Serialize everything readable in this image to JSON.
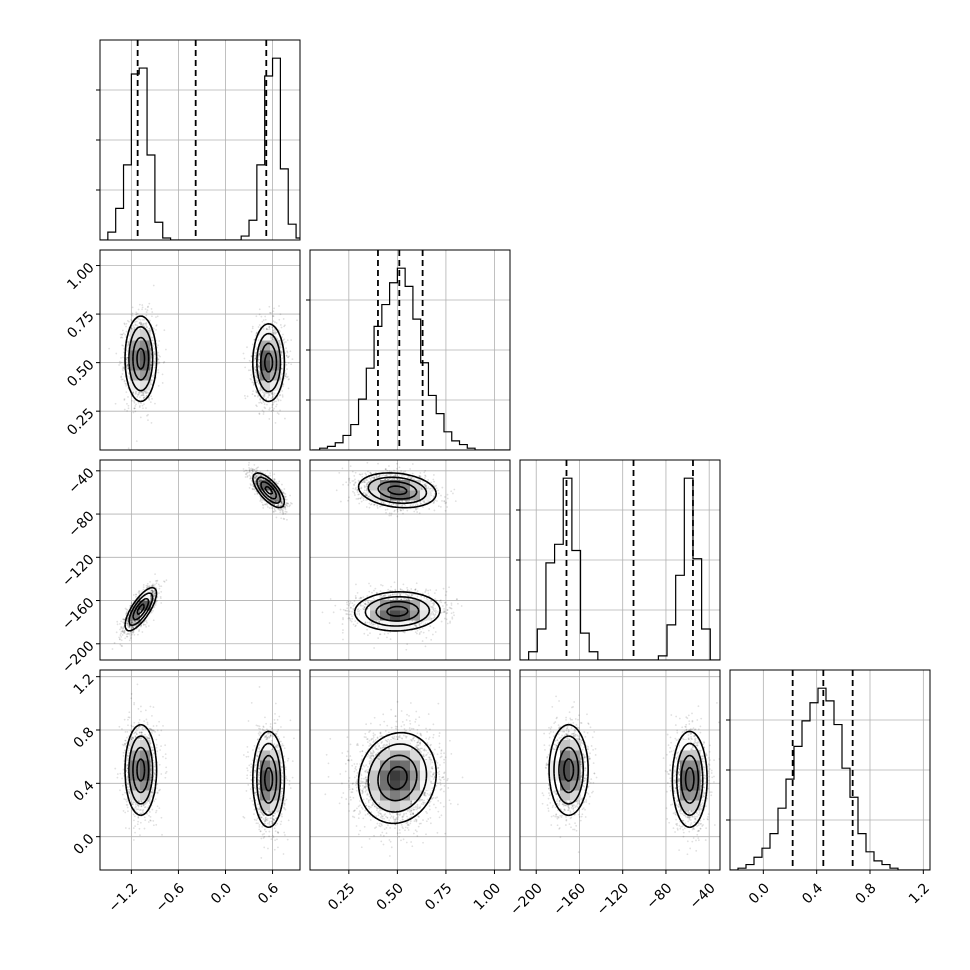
{
  "chart_data": {
    "type": "corner",
    "grid": "on",
    "parameters": [
      {
        "range": [
          -1.6,
          0.95
        ],
        "ticks": [
          -1.2,
          -0.6,
          0.0,
          0.6
        ],
        "tick_labels": [
          "−1.2",
          "−0.6",
          "0.0",
          "0.6"
        ],
        "quantiles": [
          -1.12,
          -0.38,
          0.52
        ],
        "hist_bins": [
          -1.6,
          -1.5,
          -1.4,
          -1.3,
          -1.2,
          -1.1,
          -1.0,
          -0.9,
          -0.8,
          -0.7,
          -0.6,
          -0.5,
          -0.4,
          -0.3,
          -0.2,
          -0.1,
          0.0,
          0.1,
          0.2,
          0.3,
          0.4,
          0.5,
          0.6,
          0.7,
          0.8,
          0.9
        ],
        "hist_counts": [
          0.0,
          0.04,
          0.16,
          0.38,
          0.84,
          0.87,
          0.43,
          0.09,
          0.01,
          0.0,
          0.0,
          0.0,
          0.0,
          0.0,
          0.0,
          0.0,
          0.0,
          0.0,
          0.02,
          0.1,
          0.38,
          0.83,
          0.92,
          0.36,
          0.08,
          0.01
        ]
      },
      {
        "range": [
          0.05,
          1.08
        ],
        "ticks": [
          0.25,
          0.5,
          0.75,
          1.0
        ],
        "tick_labels": [
          "0.25",
          "0.50",
          "0.75",
          "1.00"
        ],
        "quantiles": [
          0.4,
          0.51,
          0.63
        ],
        "hist_bins": [
          0.06,
          0.1,
          0.14,
          0.18,
          0.22,
          0.26,
          0.3,
          0.34,
          0.38,
          0.42,
          0.46,
          0.5,
          0.54,
          0.58,
          0.62,
          0.66,
          0.7,
          0.74,
          0.78,
          0.82,
          0.86,
          0.9,
          0.94,
          0.98,
          1.02,
          1.06
        ],
        "hist_counts": [
          0.0,
          0.01,
          0.02,
          0.04,
          0.08,
          0.14,
          0.28,
          0.45,
          0.68,
          0.8,
          0.92,
          1.0,
          0.9,
          0.72,
          0.48,
          0.3,
          0.2,
          0.1,
          0.05,
          0.03,
          0.01,
          0.0,
          0.0,
          0.0,
          0.0,
          0.0
        ]
      },
      {
        "range": [
          -215,
          -30
        ],
        "ticks": [
          -200,
          -160,
          -120,
          -80,
          -40
        ],
        "tick_labels": [
          "−200",
          "−160",
          "−120",
          "−80",
          "−40"
        ],
        "quantiles": [
          -172,
          -110,
          -55
        ],
        "hist_bins": [
          -215,
          -207,
          -199,
          -191,
          -183,
          -175,
          -167,
          -159,
          -151,
          -143,
          -135,
          -127,
          -119,
          -111,
          -103,
          -95,
          -87,
          -79,
          -71,
          -63,
          -55,
          -47,
          -39,
          -31
        ],
        "hist_counts": [
          0.0,
          0.04,
          0.15,
          0.47,
          0.56,
          0.88,
          0.53,
          0.13,
          0.04,
          0.0,
          0.0,
          0.0,
          0.0,
          0.0,
          0.0,
          0.0,
          0.02,
          0.17,
          0.41,
          0.88,
          0.49,
          0.15,
          0.0,
          0.0
        ]
      },
      {
        "range": [
          -0.25,
          1.25
        ],
        "ticks": [
          0.0,
          0.4,
          0.8,
          1.2
        ],
        "tick_labels": [
          "0.0",
          "0.4",
          "0.8",
          "1.2"
        ],
        "quantiles": [
          0.22,
          0.45,
          0.67
        ],
        "hist_bins": [
          -0.25,
          -0.19,
          -0.13,
          -0.07,
          -0.01,
          0.05,
          0.11,
          0.17,
          0.23,
          0.29,
          0.35,
          0.41,
          0.47,
          0.53,
          0.59,
          0.65,
          0.71,
          0.77,
          0.83,
          0.89,
          0.95,
          1.01,
          1.07,
          1.13,
          1.19,
          1.25
        ],
        "hist_counts": [
          0.0,
          0.01,
          0.03,
          0.07,
          0.12,
          0.2,
          0.34,
          0.5,
          0.68,
          0.82,
          0.92,
          1.0,
          0.93,
          0.8,
          0.56,
          0.4,
          0.2,
          0.1,
          0.05,
          0.03,
          0.01,
          0.0,
          0.0,
          0.0,
          0.0
        ]
      }
    ],
    "pairs": [
      {
        "x": 0,
        "y": 1,
        "modes": [
          {
            "cx": -1.08,
            "cy": 0.52,
            "sx": 0.1,
            "sy": 0.11,
            "rho": 0.0,
            "w": 0.5
          },
          {
            "cx": 0.55,
            "cy": 0.5,
            "sx": 0.1,
            "sy": 0.1,
            "rho": 0.0,
            "w": 0.5
          }
        ]
      },
      {
        "x": 0,
        "y": 2,
        "modes": [
          {
            "cx": -1.08,
            "cy": -168,
            "sx": 0.1,
            "sy": 10,
            "rho": 0.75,
            "w": 0.5
          },
          {
            "cx": 0.55,
            "cy": -58,
            "sx": 0.1,
            "sy": 8,
            "rho": -0.7,
            "w": 0.5
          }
        ]
      },
      {
        "x": 0,
        "y": 3,
        "modes": [
          {
            "cx": -1.08,
            "cy": 0.5,
            "sx": 0.1,
            "sy": 0.17,
            "rho": 0.0,
            "w": 0.5
          },
          {
            "cx": 0.55,
            "cy": 0.43,
            "sx": 0.1,
            "sy": 0.18,
            "rho": 0.0,
            "w": 0.5
          }
        ]
      },
      {
        "x": 1,
        "y": 2,
        "modes": [
          {
            "cx": 0.5,
            "cy": -58,
            "sx": 0.1,
            "sy": 8,
            "rho": -0.2,
            "w": 0.5
          },
          {
            "cx": 0.5,
            "cy": -170,
            "sx": 0.11,
            "sy": 9,
            "rho": 0.05,
            "w": 0.5
          }
        ]
      },
      {
        "x": 1,
        "y": 3,
        "modes": [
          {
            "cx": 0.5,
            "cy": 0.44,
            "sx": 0.1,
            "sy": 0.17,
            "rho": 0.1,
            "w": 1.0
          }
        ]
      },
      {
        "x": 2,
        "y": 3,
        "modes": [
          {
            "cx": -170,
            "cy": 0.5,
            "sx": 9,
            "sy": 0.17,
            "rho": 0.0,
            "w": 0.5
          },
          {
            "cx": -58,
            "cy": 0.43,
            "sx": 8,
            "sy": 0.18,
            "rho": 0.0,
            "w": 0.5
          }
        ]
      }
    ]
  }
}
